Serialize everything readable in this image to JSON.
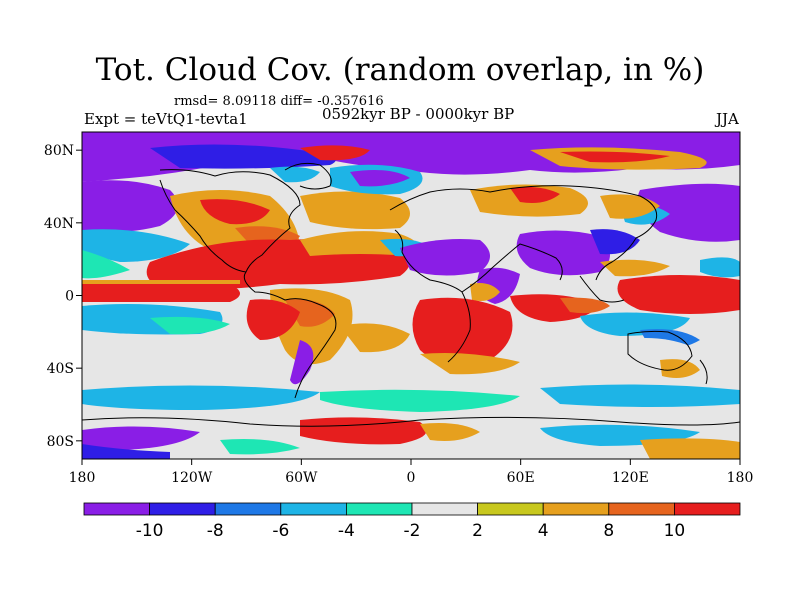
{
  "map": {
    "title": "Tot. Cloud Cov. (random overlap, in %)",
    "stats": "rmsd= 8.09118 diff= -0.357616",
    "experiment": "Expt = teVtQ1-tevta1",
    "period": "0592kyr BP - 0000kyr BP",
    "season": "JJA",
    "lon_ticks": [
      "180",
      "120W",
      "60W",
      "0",
      "60E",
      "120E",
      "180"
    ],
    "lat_ticks": [
      "80N",
      "40N",
      "0",
      "40S",
      "80S"
    ],
    "lat_values": [
      80,
      40,
      0,
      -40,
      -80
    ],
    "lon_values": [
      -180,
      -120,
      -60,
      0,
      60,
      120,
      180
    ],
    "lat_range": [
      -90,
      90
    ],
    "lon_range": [
      -180,
      180
    ]
  },
  "colorbar": {
    "labels": [
      "-10",
      "-8",
      "-6",
      "-4",
      "-2",
      "2",
      "4",
      "8",
      "10"
    ],
    "colors": [
      "#8a1ee6",
      "#2f1ee6",
      "#1e78e6",
      "#1eb4e6",
      "#1ee6b4",
      "#e6e6e6",
      "#c8c81e",
      "#e6a01e",
      "#e6641e",
      "#e61e1e"
    ]
  }
}
